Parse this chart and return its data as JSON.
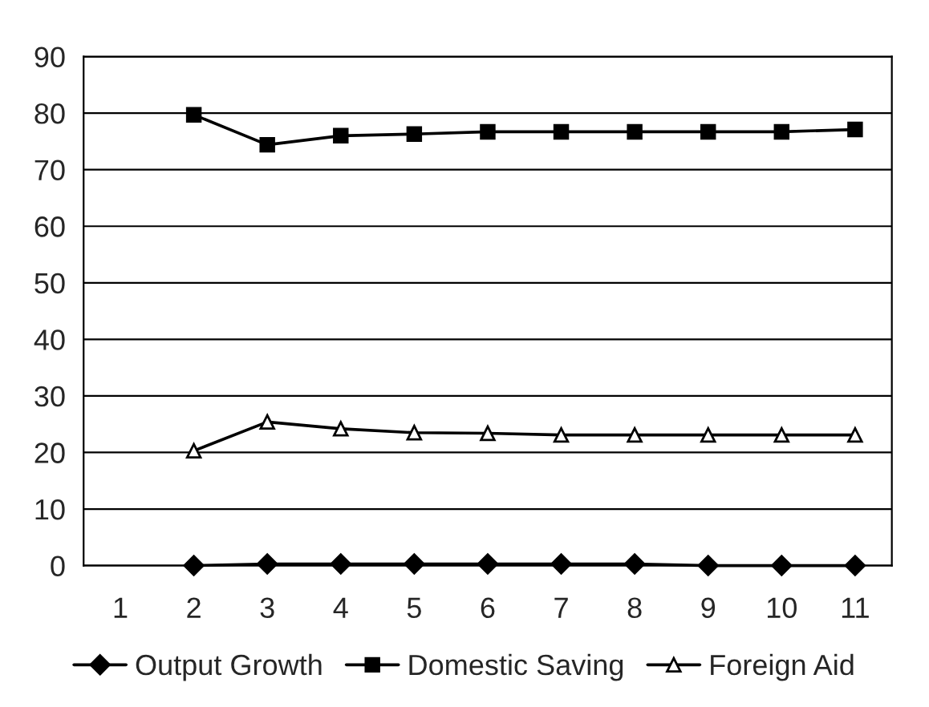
{
  "chart_data": {
    "type": "line",
    "categories": [
      "1",
      "2",
      "3",
      "4",
      "5",
      "6",
      "7",
      "8",
      "9",
      "10",
      "11"
    ],
    "series": [
      {
        "name": "Output Growth",
        "color": "#000000",
        "marker": "diamond",
        "values": [
          null,
          0,
          0.3,
          0.3,
          0.3,
          0.3,
          0.3,
          0.3,
          0,
          0,
          0
        ]
      },
      {
        "name": "Domestic Saving",
        "color": "#000000",
        "marker": "square",
        "values": [
          null,
          79.7,
          74.4,
          76,
          76.3,
          76.7,
          76.7,
          76.7,
          76.7,
          76.7,
          77.1
        ]
      },
      {
        "name": "Foreign Aid",
        "color": "#000000",
        "marker": "triangle",
        "values": [
          null,
          20.3,
          25.4,
          24.2,
          23.5,
          23.4,
          23.1,
          23.1,
          23.1,
          23.1,
          23.1
        ]
      }
    ],
    "ylim": [
      0,
      90
    ],
    "yticks": [
      0,
      10,
      20,
      30,
      40,
      50,
      60,
      70,
      80,
      90
    ],
    "grid": "y",
    "legend": "bottom",
    "line_style": "solid"
  }
}
